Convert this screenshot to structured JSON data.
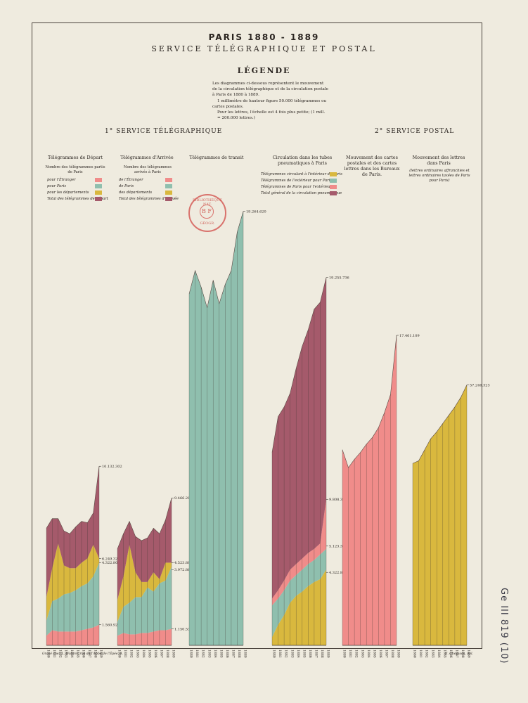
{
  "header": {
    "title": "PARIS 1880 - 1889",
    "subtitle": "SERVICE TÉLÉGRAPHIQUE ET POSTAL",
    "legend_heading": "LÉGENDE",
    "legend_lines": [
      "Les diagrammes ci-dessous représentent le mouvement",
      "de la circulation télégraphique et de la circulation postale",
      "à Paris de 1880 à 1889.",
      "1 millimètre de hauteur figure 50.000 télégrammes ou",
      "cartes postales.",
      "Pour les lettres, l'échelle est 4 fois plus petite; (1 mill.",
      "= 200.000 lettres.)"
    ]
  },
  "sections": {
    "telegraph": "1° SERVICE TÉLÉGRAPHIQUE",
    "postal": "2° SERVICE POSTAL"
  },
  "legends": {
    "depart": {
      "title": "Télégrammes de Départ",
      "subtitle": "Nombre des télégrammes partis de Paris",
      "items": [
        {
          "label": "pour l'Étranger",
          "color": "#f08c8a"
        },
        {
          "label": "pour Paris",
          "color": "#8fbfae"
        },
        {
          "label": "pour les départements",
          "color": "#d9b83e"
        },
        {
          "label": "Total des télégrammes de départ",
          "color": "#a55a6b"
        }
      ]
    },
    "arrivee": {
      "title": "Télégrammes d'Arrivée",
      "subtitle": "Nombre des télégrammes arrivés à Paris",
      "items": [
        {
          "label": "de l'Étranger",
          "color": "#f08c8a"
        },
        {
          "label": "de Paris",
          "color": "#8fbfae"
        },
        {
          "label": "des départements",
          "color": "#d9b83e"
        },
        {
          "label": "Total des télégrammes d'arrivée",
          "color": "#a55a6b"
        }
      ]
    },
    "transit": {
      "title": "Télégrammes de transit"
    },
    "tubes": {
      "title": "Circulation dans les tubes pneumatiques à Paris",
      "items": [
        {
          "label": "Télégrammes circulant à l'intérieur de Paris",
          "color": "#d9b83e"
        },
        {
          "label": "Télégrammes de l'extérieur pour Paris",
          "color": "#8fbfae"
        },
        {
          "label": "Télégrammes de Paris pour l'extérieur",
          "color": "#f08c8a"
        },
        {
          "label": "Total général de la circulation pneumatique",
          "color": "#a55a6b"
        }
      ]
    },
    "cartes": {
      "title": "Mouvement des cartes postales et des cartes lettres dans les Bureaux de Paris."
    },
    "lettres": {
      "title": "Mouvement des lettres dans Paris",
      "subtitle": "(lettres ordinaires affranchies et lettres ordinaires taxées de Paris pour Paris)"
    }
  },
  "stamp": {
    "top": "BIBLIOTHÈQUE NAT.",
    "mid": "B F",
    "bottom": "GÉOGR."
  },
  "footer": {
    "left": "Gravé chez L. Wuhrer, rue de l'Abbé de l'Épée, 4.",
    "right": "E. Cheysson, del."
  },
  "shelfmark": "Ge III 819 (10)",
  "chart_data": [
    {
      "type": "area",
      "id": "depart",
      "title": "Télégrammes de Départ",
      "x": [
        "1880",
        "1881",
        "1882",
        "1883",
        "1884",
        "1885",
        "1886",
        "1887",
        "1888",
        "1889"
      ],
      "series": [
        {
          "name": "pour l'Étranger",
          "color": "#f08c8a",
          "values": [
            0.7,
            1.1,
            1.0,
            1.0,
            1.0,
            1.0,
            1.1,
            1.2,
            1.3,
            1.5
          ]
        },
        {
          "name": "pour Paris",
          "color": "#8fbfae",
          "values": [
            1.1,
            2.1,
            2.4,
            2.7,
            2.8,
            3.0,
            3.2,
            3.3,
            3.7,
            4.5
          ]
        },
        {
          "name": "pour les départements",
          "color": "#d9b83e",
          "values": [
            1.7,
            2.4,
            4.0,
            2.1,
            1.8,
            1.6,
            1.7,
            1.8,
            2.3,
            0.3
          ]
        },
        {
          "name": "Total des télégrammes de départ",
          "color": "#a55a6b",
          "values": [
            5.0,
            3.6,
            1.8,
            2.5,
            2.5,
            3.0,
            3.0,
            2.6,
            2.3,
            6.7
          ]
        }
      ],
      "series_labels": [
        "10.132.302",
        "6.249.324",
        "4.322.803",
        "1.560.923"
      ]
    },
    {
      "type": "area",
      "id": "arrivee",
      "title": "Télégrammes d'Arrivée",
      "x": [
        "1880",
        "1881",
        "1882",
        "1883",
        "1884",
        "1885",
        "1886",
        "1887",
        "1888",
        "1889"
      ],
      "series": [
        {
          "name": "de l'Étranger",
          "color": "#f08c8a",
          "values": [
            0.7,
            0.9,
            0.8,
            0.8,
            0.9,
            0.9,
            1.0,
            1.1,
            1.1,
            1.2
          ]
        },
        {
          "name": "de Paris",
          "color": "#8fbfae",
          "values": [
            1.0,
            1.9,
            2.3,
            2.7,
            2.6,
            3.3,
            2.9,
            3.4,
            3.6,
            4.5
          ]
        },
        {
          "name": "des départements",
          "color": "#d9b83e",
          "values": [
            1.6,
            2.2,
            4.2,
            1.8,
            1.1,
            0.4,
            1.4,
            0.3,
            1.3,
            0.3
          ]
        },
        {
          "name": "Total des télégrammes d'arrivée",
          "color": "#a55a6b",
          "values": [
            3.7,
            3.1,
            1.7,
            2.6,
            3.0,
            3.2,
            3.2,
            3.3,
            3.1,
            4.7
          ]
        }
      ],
      "series_labels": [
        "9.466.287",
        "4.523.885",
        "3.972.863",
        "1.150.539"
      ]
    },
    {
      "type": "area",
      "id": "transit",
      "title": "Télégrammes de transit",
      "x": [
        "1880",
        "1881",
        "1882",
        "1883",
        "1884",
        "1885",
        "1886",
        "1887",
        "1888",
        "1889"
      ],
      "series": [
        {
          "name": "Télégrammes de transit",
          "color": "#8fbfae",
          "values": [
            25.5,
            27.2,
            26.0,
            24.5,
            26.5,
            24.8,
            26.2,
            27.2,
            30.0,
            31.5
          ]
        }
      ],
      "series_labels": [
        "19.264.620"
      ]
    },
    {
      "type": "area",
      "id": "tubes",
      "title": "Circulation dans les tubes pneumatiques à Paris",
      "x": [
        "1880",
        "1881",
        "1882",
        "1883",
        "1884",
        "1885",
        "1886",
        "1887",
        "1888",
        "1889"
      ],
      "series": [
        {
          "name": "Télégrammes circulant à l'intérieur de Paris",
          "color": "#d9b83e",
          "values": [
            0.6,
            1.5,
            2.2,
            3.1,
            3.6,
            3.9,
            4.3,
            4.6,
            4.8,
            5.5
          ]
        },
        {
          "name": "Télégrammes de l'extérieur pour Paris",
          "color": "#8fbfae",
          "values": [
            2.3,
            1.9,
            1.8,
            1.6,
            1.5,
            1.6,
            1.6,
            1.6,
            1.8,
            1.5
          ]
        },
        {
          "name": "Télégrammes de Paris pour l'extérieur",
          "color": "#f08c8a",
          "values": [
            0.5,
            0.6,
            0.7,
            0.8,
            0.8,
            0.8,
            0.8,
            0.8,
            0.8,
            3.6
          ]
        },
        {
          "name": "Total général de la circulation pneumatique",
          "color": "#a55a6b",
          "values": [
            10.6,
            12.6,
            12.6,
            12.8,
            14.2,
            15.4,
            16.2,
            17.4,
            17.5,
            16.1
          ]
        }
      ],
      "series_labels": [
        "19.255.736",
        "9.808.347",
        "5.123.322",
        "4.322.865"
      ]
    },
    {
      "type": "area",
      "id": "cartes",
      "title": "Mouvement des cartes postales et des cartes lettres dans les Bureaux de Paris.",
      "x": [
        "1880",
        "1881",
        "1882",
        "1883",
        "1884",
        "1885",
        "1886",
        "1887",
        "1888",
        "1889"
      ],
      "series": [
        {
          "name": "Cartes postales et cartes lettres",
          "color": "#f08c8a",
          "values": [
            14.2,
            12.9,
            13.5,
            14.0,
            14.6,
            15.1,
            15.8,
            16.9,
            18.2,
            22.5
          ]
        }
      ],
      "series_labels": [
        "17.461.109"
      ]
    },
    {
      "type": "area",
      "id": "lettres",
      "title": "Mouvement des lettres dans Paris",
      "x": [
        "1880",
        "1881",
        "1882",
        "1883",
        "1884",
        "1885",
        "1886",
        "1887",
        "1888",
        "1889"
      ],
      "series": [
        {
          "name": "Lettres",
          "color": "#d9b83e",
          "values": [
            13.2,
            13.4,
            14.2,
            15.0,
            15.5,
            16.1,
            16.7,
            17.3,
            18.0,
            18.9
          ]
        }
      ],
      "series_labels": [
        "57.240.323"
      ]
    }
  ]
}
